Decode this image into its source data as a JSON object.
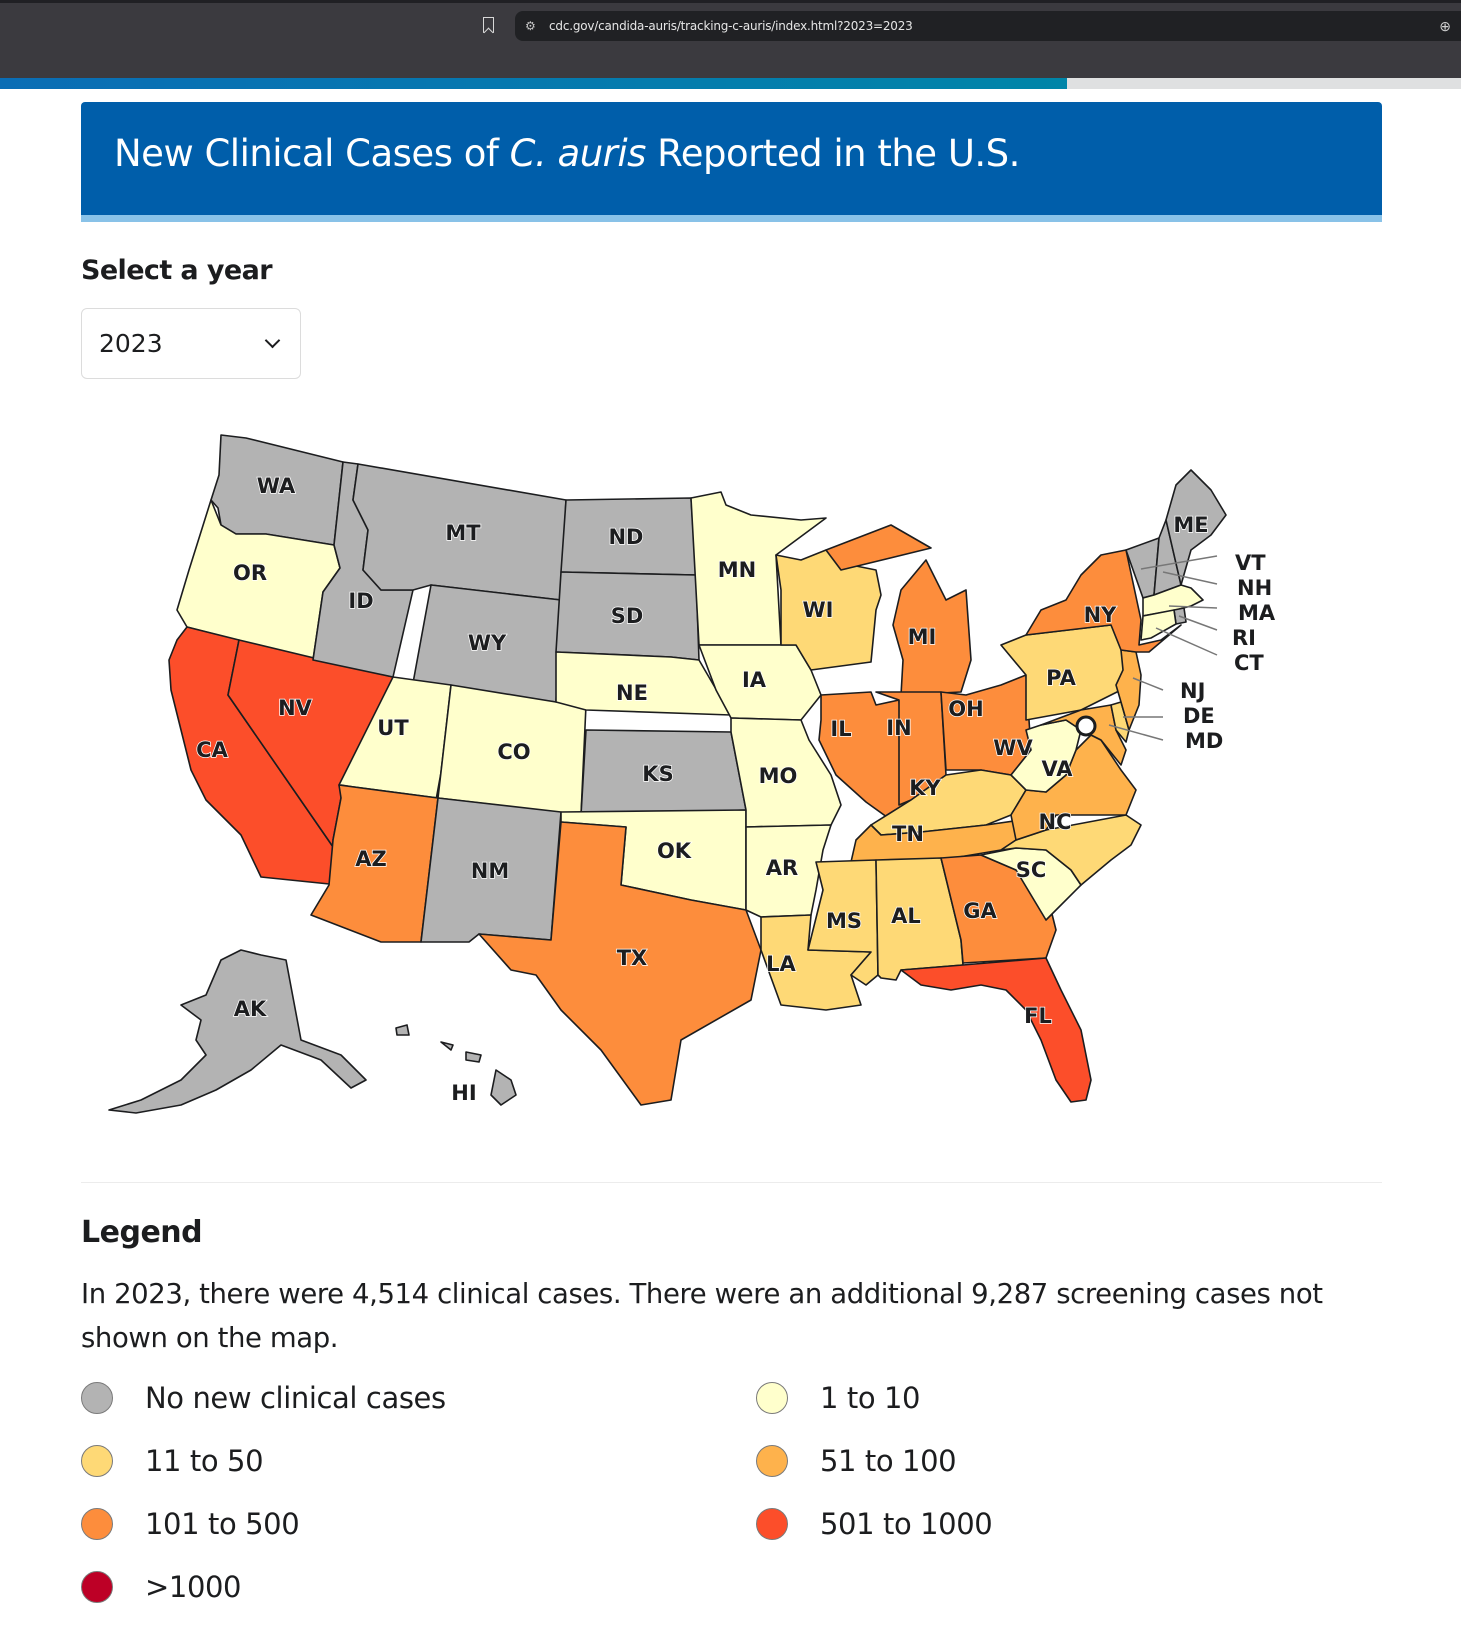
{
  "browser": {
    "url": "cdc.gov/candida-auris/tracking-c-auris/index.html?2023=2023",
    "icons": [
      "bookmark-icon",
      "site-settings-icon",
      "zoom-icon"
    ],
    "load_progress_pct": 73
  },
  "header": {
    "title_before": "New Clinical Cases of ",
    "title_italic": "C. auris",
    "title_after": " Reported in the U.S."
  },
  "year_selector": {
    "label": "Select a year",
    "selected": "2023",
    "icon": "chevron-down-icon"
  },
  "legend": {
    "title": "Legend",
    "summary": "In 2023, there were 4,514 clinical cases. There were an additional 9,287 screening cases not shown on the map.",
    "items": [
      {
        "key": "none",
        "label": "No new clinical cases",
        "color": "#b3b3b3"
      },
      {
        "key": "c1",
        "label": "1 to 10",
        "color": "#ffffcc"
      },
      {
        "key": "c2",
        "label": "11 to 50",
        "color": "#fed976"
      },
      {
        "key": "c3",
        "label": "51 to 100",
        "color": "#feb24c"
      },
      {
        "key": "c4",
        "label": "101 to 500",
        "color": "#fd8d3c"
      },
      {
        "key": "c5",
        "label": "501 to 1000",
        "color": "#fc4e2a"
      },
      {
        "key": "c6",
        "label": ">1000",
        "color": "#bd0026"
      }
    ]
  },
  "chart_data": {
    "type": "choropleth",
    "title": "New Clinical Cases of C. auris Reported in the U.S.",
    "year": "2023",
    "total_clinical_cases": 4514,
    "additional_screening_cases": 9287,
    "bins": [
      "No new clinical cases",
      "1 to 10",
      "11 to 50",
      "51 to 100",
      "101 to 500",
      "501 to 1000",
      ">1000"
    ],
    "states": {
      "WA": "none",
      "OR": "c1",
      "CA": "c5",
      "NV": "c5",
      "ID": "none",
      "MT": "none",
      "WY": "none",
      "UT": "c1",
      "CO": "c1",
      "AZ": "c4",
      "NM": "none",
      "ND": "none",
      "SD": "none",
      "NE": "c1",
      "KS": "none",
      "OK": "c1",
      "TX": "c4",
      "MN": "c1",
      "IA": "c1",
      "MO": "c1",
      "AR": "c1",
      "LA": "c2",
      "WI": "c2",
      "IL": "c4",
      "MI": "c4",
      "IN": "c4",
      "OH": "c4",
      "KY": "c2",
      "TN": "c3",
      "MS": "c2",
      "AL": "c2",
      "GA": "c4",
      "FL": "c5",
      "SC": "c1",
      "NC": "c2",
      "VA": "c3",
      "WV": "c1",
      "PA": "c2",
      "NY": "c4",
      "NJ": "c3",
      "DE": "c2",
      "MD": "c3",
      "CT": "c1",
      "RI": "none",
      "MA": "c1",
      "VT": "none",
      "NH": "none",
      "ME": "none",
      "AK": "none",
      "HI": "none"
    },
    "callout_states": [
      "VT",
      "NH",
      "MA",
      "RI",
      "CT",
      "NJ",
      "DE",
      "MD"
    ]
  }
}
